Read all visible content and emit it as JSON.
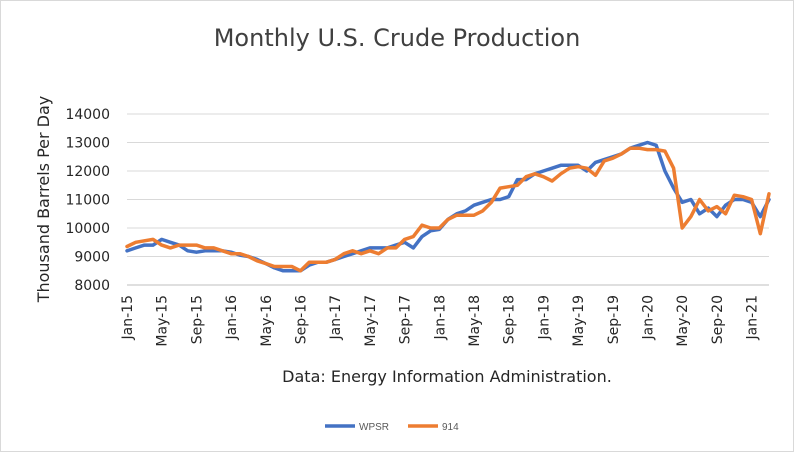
{
  "chart_data": {
    "type": "line",
    "title": "Monthly U.S. Crude Production",
    "ylabel": "Thousand Barrels Per Day",
    "xlabel": "Data: Energy Information Administration.",
    "ylim": [
      8000,
      14000
    ],
    "yticks": [
      "8000",
      "9000",
      "10000",
      "11000",
      "12000",
      "13000",
      "14000"
    ],
    "grid": true,
    "legend_position": "bottom",
    "x_tick_labels": [
      "Jan-15",
      "May-15",
      "Sep-15",
      "Jan-16",
      "May-16",
      "Sep-16",
      "Jan-17",
      "May-17",
      "Sep-17",
      "Jan-18",
      "May-18",
      "Sep-18",
      "Jan-19",
      "May-19",
      "Sep-19",
      "Jan-20",
      "May-20",
      "Sep-20",
      "Jan-21"
    ],
    "x_tick_every": 4,
    "months": [
      "Jan-15",
      "Feb-15",
      "Mar-15",
      "Apr-15",
      "May-15",
      "Jun-15",
      "Jul-15",
      "Aug-15",
      "Sep-15",
      "Oct-15",
      "Nov-15",
      "Dec-15",
      "Jan-16",
      "Feb-16",
      "Mar-16",
      "Apr-16",
      "May-16",
      "Jun-16",
      "Jul-16",
      "Aug-16",
      "Sep-16",
      "Oct-16",
      "Nov-16",
      "Dec-16",
      "Jan-17",
      "Feb-17",
      "Mar-17",
      "Apr-17",
      "May-17",
      "Jun-17",
      "Jul-17",
      "Aug-17",
      "Sep-17",
      "Oct-17",
      "Nov-17",
      "Dec-17",
      "Jan-18",
      "Feb-18",
      "Mar-18",
      "Apr-18",
      "May-18",
      "Jun-18",
      "Jul-18",
      "Aug-18",
      "Sep-18",
      "Oct-18",
      "Nov-18",
      "Dec-18",
      "Jan-19",
      "Feb-19",
      "Mar-19",
      "Apr-19",
      "May-19",
      "Jun-19",
      "Jul-19",
      "Aug-19",
      "Sep-19",
      "Oct-19",
      "Nov-19",
      "Dec-19",
      "Jan-20",
      "Feb-20",
      "Mar-20",
      "Apr-20",
      "May-20",
      "Jun-20",
      "Jul-20",
      "Aug-20",
      "Sep-20",
      "Oct-20",
      "Nov-20",
      "Dec-20",
      "Jan-21",
      "Feb-21",
      "Mar-21"
    ],
    "series": [
      {
        "name": "WPSR",
        "color": "#4472c4",
        "values": [
          9200,
          9300,
          9400,
          9400,
          9600,
          9500,
          9400,
          9200,
          9150,
          9200,
          9200,
          9200,
          9150,
          9050,
          9000,
          8900,
          8750,
          8600,
          8500,
          8500,
          8500,
          8700,
          8800,
          8800,
          8900,
          9000,
          9100,
          9200,
          9300,
          9300,
          9300,
          9400,
          9500,
          9300,
          9700,
          9900,
          9950,
          10300,
          10500,
          10600,
          10800,
          10900,
          11000,
          11000,
          11100,
          11700,
          11700,
          11900,
          12000,
          12100,
          12200,
          12200,
          12200,
          12000,
          12300,
          12400,
          12500,
          12600,
          12800,
          12900,
          13000,
          12900,
          12000,
          11400,
          10900,
          11000,
          10500,
          10700,
          10400,
          10800,
          11000,
          11000,
          10900,
          10400,
          11000
        ]
      },
      {
        "name": "914",
        "color": "#ed7d31",
        "values": [
          9350,
          9500,
          9550,
          9600,
          9400,
          9300,
          9400,
          9400,
          9400,
          9300,
          9300,
          9200,
          9100,
          9100,
          9000,
          8850,
          8750,
          8650,
          8650,
          8650,
          8500,
          8800,
          8800,
          8800,
          8900,
          9100,
          9200,
          9100,
          9200,
          9100,
          9300,
          9300,
          9600,
          9700,
          10100,
          10000,
          10000,
          10300,
          10450,
          10450,
          10450,
          10600,
          10900,
          11400,
          11450,
          11500,
          11800,
          11900,
          11800,
          11650,
          11900,
          12100,
          12150,
          12100,
          11850,
          12350,
          12450,
          12600,
          12800,
          12800,
          12750,
          12750,
          12700,
          12100,
          10000,
          10400,
          11000,
          10600,
          10750,
          10500,
          11150,
          11100,
          11000,
          9800,
          11200
        ]
      }
    ]
  }
}
